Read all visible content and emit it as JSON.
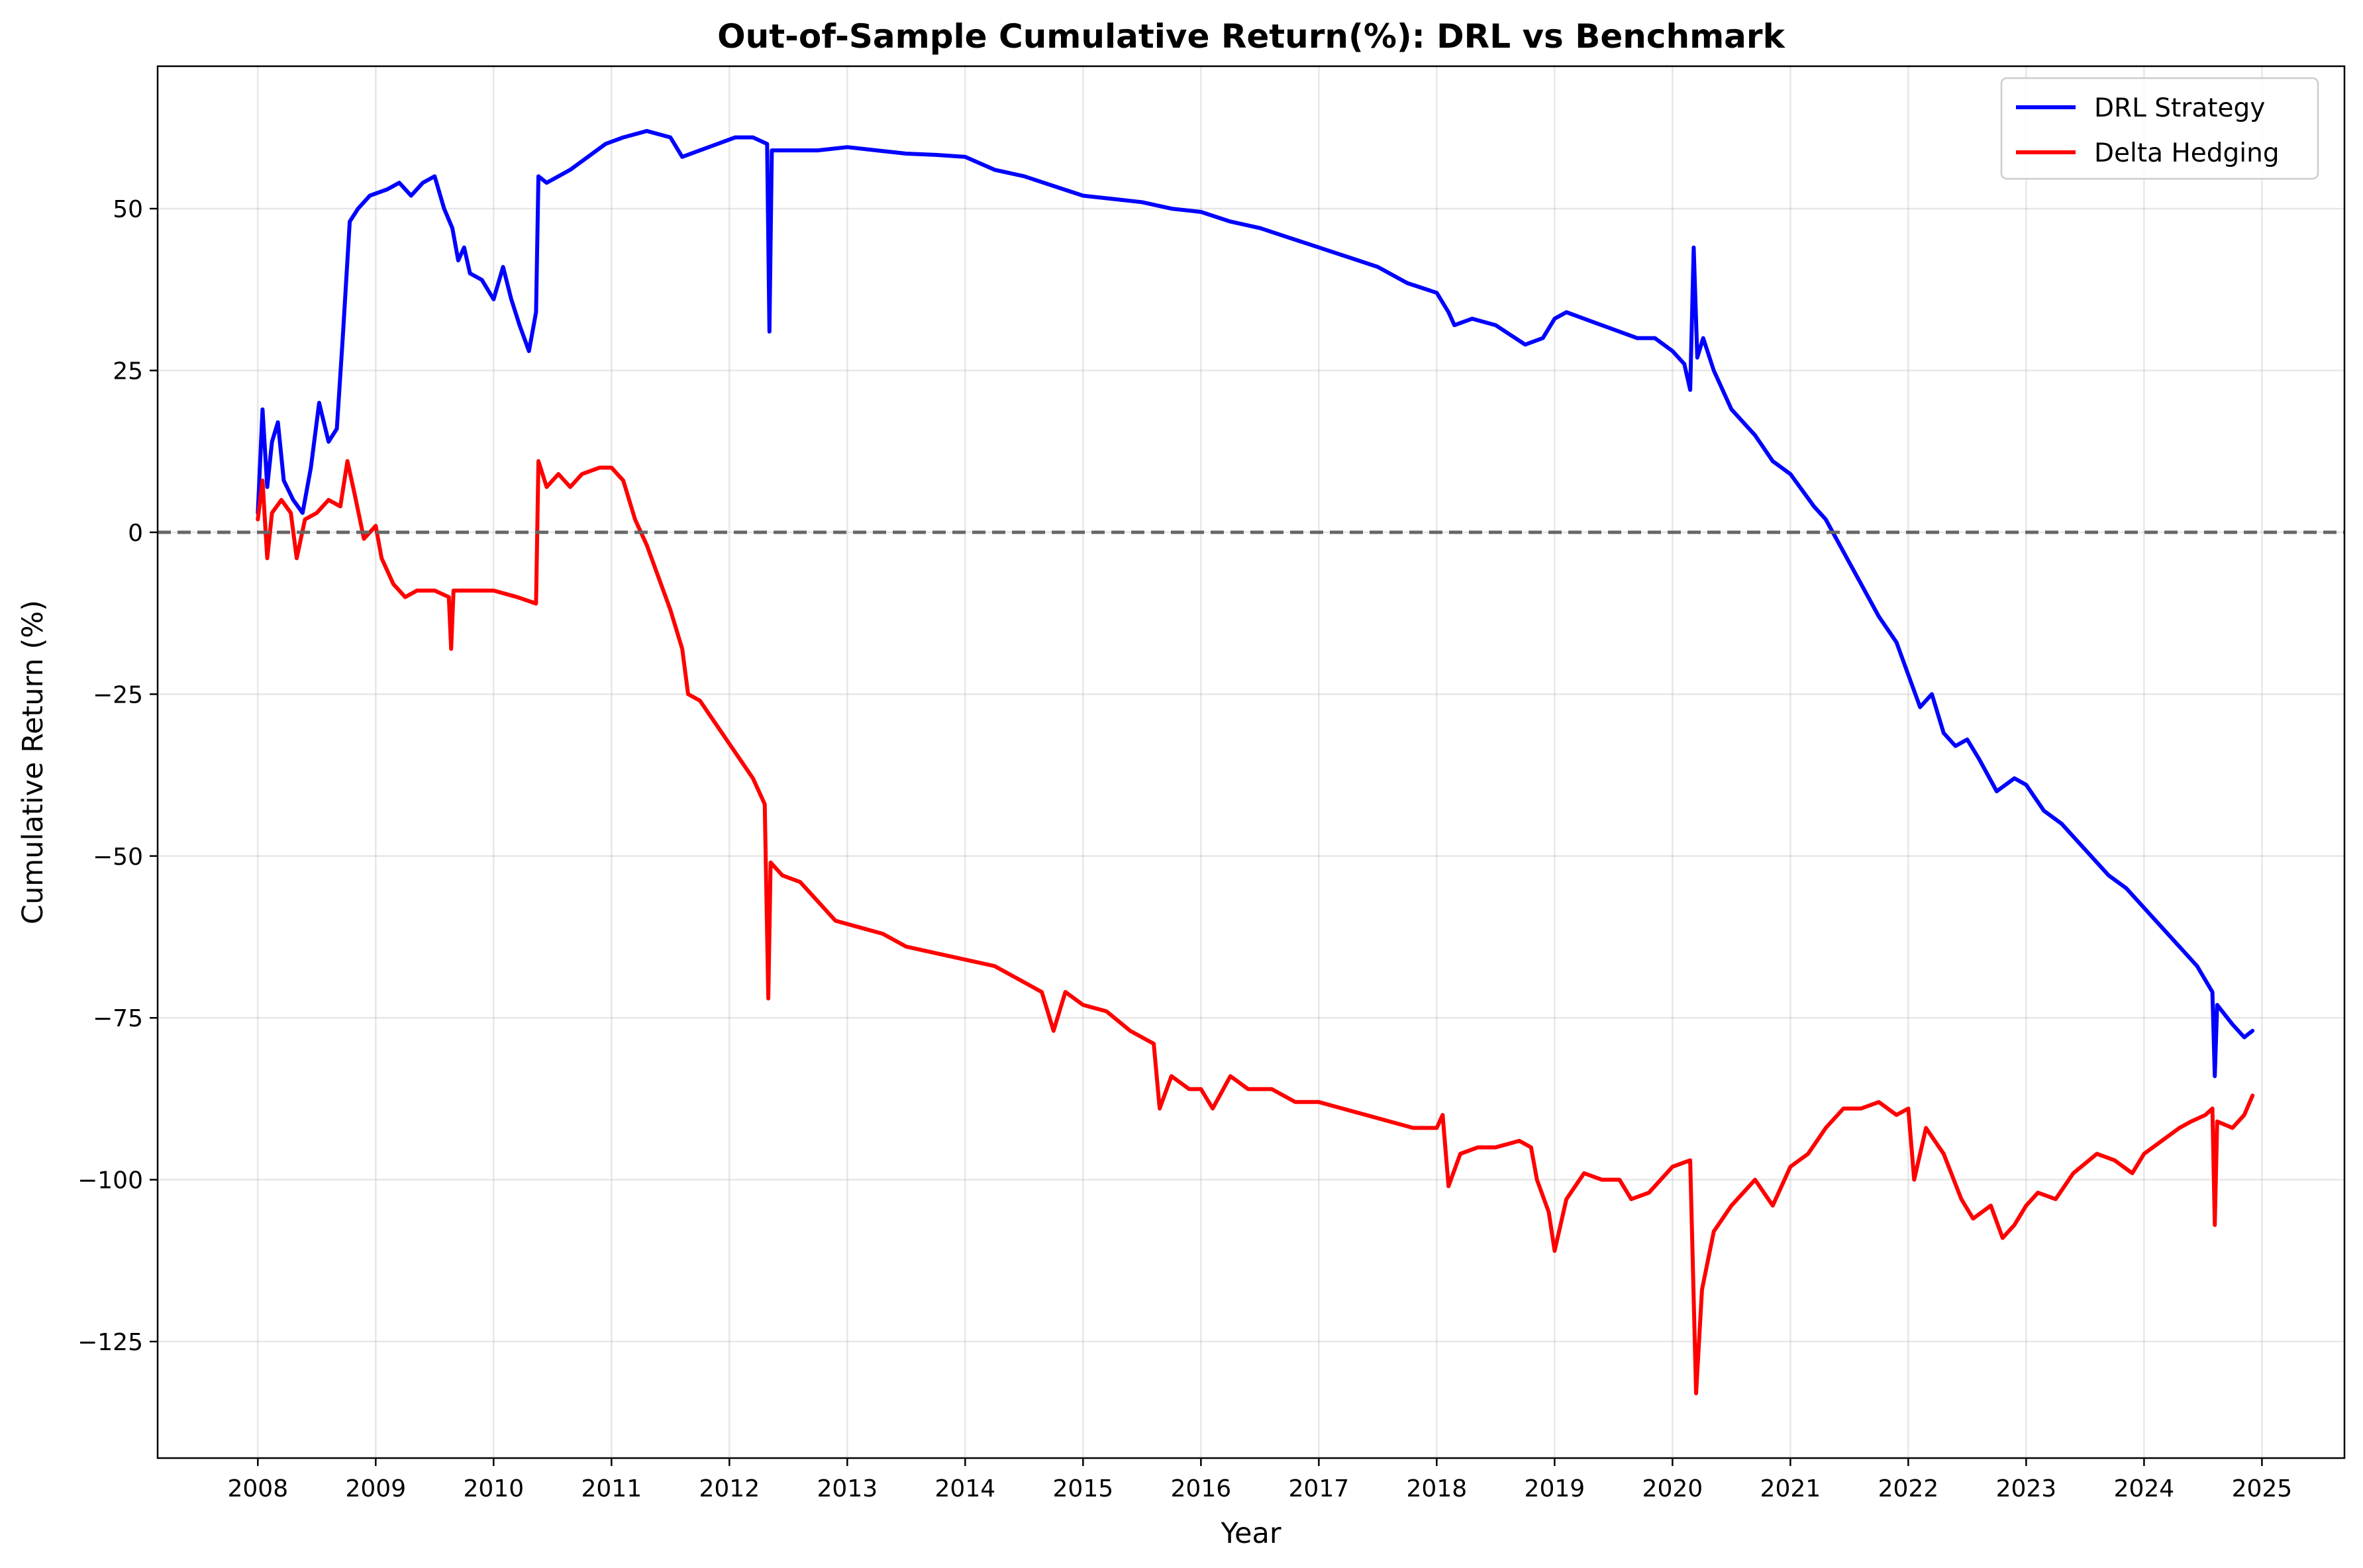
{
  "chart_data": {
    "type": "line",
    "title": "Out-of-Sample Cumulative Return(%): DRL vs Benchmark",
    "xlabel": "Year",
    "ylabel": "Cumulative Return (%)",
    "xlim": [
      2007.15,
      2025.7
    ],
    "ylim": [
      -143,
      72
    ],
    "x_ticks": [
      2008,
      2009,
      2010,
      2011,
      2012,
      2013,
      2014,
      2015,
      2016,
      2017,
      2018,
      2019,
      2020,
      2021,
      2022,
      2023,
      2024,
      2025
    ],
    "x_tick_labels": [
      "2008",
      "2009",
      "2010",
      "2011",
      "2012",
      "2013",
      "2014",
      "2015",
      "2016",
      "2017",
      "2018",
      "2019",
      "2020",
      "2021",
      "2022",
      "2023",
      "2024",
      "2025"
    ],
    "y_ticks": [
      50,
      25,
      0,
      -25,
      -50,
      -75,
      -100,
      -125
    ],
    "y_tick_labels": [
      "50",
      "25",
      "0",
      "−25",
      "−50",
      "−75",
      "−100",
      "−125"
    ],
    "grid": true,
    "reference_line": 0,
    "legend": {
      "placement": "top-right"
    },
    "series": [
      {
        "name": "DRL Strategy",
        "color": "#0000ff",
        "points": [
          [
            2008.0,
            3
          ],
          [
            2008.04,
            19
          ],
          [
            2008.08,
            7
          ],
          [
            2008.12,
            14
          ],
          [
            2008.17,
            17
          ],
          [
            2008.22,
            8
          ],
          [
            2008.3,
            5
          ],
          [
            2008.38,
            3
          ],
          [
            2008.45,
            10
          ],
          [
            2008.52,
            20
          ],
          [
            2008.6,
            14
          ],
          [
            2008.67,
            16
          ],
          [
            2008.72,
            30
          ],
          [
            2008.78,
            48
          ],
          [
            2008.85,
            50
          ],
          [
            2008.95,
            52
          ],
          [
            2009.1,
            53
          ],
          [
            2009.2,
            54
          ],
          [
            2009.3,
            52
          ],
          [
            2009.4,
            54
          ],
          [
            2009.5,
            55
          ],
          [
            2009.58,
            50
          ],
          [
            2009.65,
            47
          ],
          [
            2009.7,
            42
          ],
          [
            2009.75,
            44
          ],
          [
            2009.8,
            40
          ],
          [
            2009.9,
            39
          ],
          [
            2010.0,
            36
          ],
          [
            2010.08,
            41
          ],
          [
            2010.15,
            36
          ],
          [
            2010.22,
            32
          ],
          [
            2010.3,
            28
          ],
          [
            2010.36,
            34
          ],
          [
            2010.38,
            55
          ],
          [
            2010.45,
            54
          ],
          [
            2010.55,
            55
          ],
          [
            2010.65,
            56
          ],
          [
            2010.8,
            58
          ],
          [
            2010.95,
            60
          ],
          [
            2011.1,
            61
          ],
          [
            2011.3,
            62
          ],
          [
            2011.5,
            61
          ],
          [
            2011.6,
            58
          ],
          [
            2011.75,
            59
          ],
          [
            2011.9,
            60
          ],
          [
            2012.05,
            61
          ],
          [
            2012.2,
            61
          ],
          [
            2012.32,
            60
          ],
          [
            2012.34,
            31
          ],
          [
            2012.36,
            59
          ],
          [
            2012.5,
            59
          ],
          [
            2012.75,
            59
          ],
          [
            2013.0,
            59.5
          ],
          [
            2013.25,
            59
          ],
          [
            2013.5,
            58.5
          ],
          [
            2013.75,
            58.3
          ],
          [
            2014.0,
            58
          ],
          [
            2014.25,
            56
          ],
          [
            2014.5,
            55
          ],
          [
            2014.75,
            53.5
          ],
          [
            2015.0,
            52
          ],
          [
            2015.25,
            51.5
          ],
          [
            2015.5,
            51
          ],
          [
            2015.75,
            50
          ],
          [
            2016.0,
            49.5
          ],
          [
            2016.25,
            48
          ],
          [
            2016.5,
            47
          ],
          [
            2016.75,
            45.5
          ],
          [
            2017.0,
            44
          ],
          [
            2017.25,
            42.5
          ],
          [
            2017.5,
            41
          ],
          [
            2017.75,
            38.5
          ],
          [
            2018.0,
            37
          ],
          [
            2018.1,
            34
          ],
          [
            2018.15,
            32
          ],
          [
            2018.3,
            33
          ],
          [
            2018.5,
            32
          ],
          [
            2018.75,
            29
          ],
          [
            2018.9,
            30
          ],
          [
            2019.0,
            33
          ],
          [
            2019.1,
            34
          ],
          [
            2019.25,
            33
          ],
          [
            2019.4,
            32
          ],
          [
            2019.55,
            31
          ],
          [
            2019.7,
            30
          ],
          [
            2019.85,
            30
          ],
          [
            2020.0,
            28
          ],
          [
            2020.1,
            26
          ],
          [
            2020.15,
            22
          ],
          [
            2020.18,
            44
          ],
          [
            2020.21,
            27
          ],
          [
            2020.26,
            30
          ],
          [
            2020.35,
            25
          ],
          [
            2020.5,
            19
          ],
          [
            2020.7,
            15
          ],
          [
            2020.85,
            11
          ],
          [
            2021.0,
            9
          ],
          [
            2021.2,
            4
          ],
          [
            2021.3,
            2
          ],
          [
            2021.45,
            -3
          ],
          [
            2021.6,
            -8
          ],
          [
            2021.75,
            -13
          ],
          [
            2021.9,
            -17
          ],
          [
            2022.0,
            -22
          ],
          [
            2022.1,
            -27
          ],
          [
            2022.2,
            -25
          ],
          [
            2022.3,
            -31
          ],
          [
            2022.4,
            -33
          ],
          [
            2022.5,
            -32
          ],
          [
            2022.6,
            -35
          ],
          [
            2022.75,
            -40
          ],
          [
            2022.9,
            -38
          ],
          [
            2023.0,
            -39
          ],
          [
            2023.15,
            -43
          ],
          [
            2023.3,
            -45
          ],
          [
            2023.5,
            -49
          ],
          [
            2023.7,
            -53
          ],
          [
            2023.85,
            -55
          ],
          [
            2024.0,
            -58
          ],
          [
            2024.15,
            -61
          ],
          [
            2024.3,
            -64
          ],
          [
            2024.45,
            -67
          ],
          [
            2024.58,
            -71
          ],
          [
            2024.6,
            -84
          ],
          [
            2024.62,
            -73
          ],
          [
            2024.75,
            -76
          ],
          [
            2024.85,
            -78
          ],
          [
            2024.92,
            -77
          ]
        ]
      },
      {
        "name": "Delta Hedging",
        "color": "#ff0000",
        "points": [
          [
            2008.0,
            2
          ],
          [
            2008.04,
            8
          ],
          [
            2008.08,
            -4
          ],
          [
            2008.12,
            3
          ],
          [
            2008.2,
            5
          ],
          [
            2008.28,
            3
          ],
          [
            2008.33,
            -4
          ],
          [
            2008.4,
            2
          ],
          [
            2008.5,
            3
          ],
          [
            2008.6,
            5
          ],
          [
            2008.7,
            4
          ],
          [
            2008.76,
            11
          ],
          [
            2008.82,
            6
          ],
          [
            2008.9,
            -1
          ],
          [
            2009.0,
            1
          ],
          [
            2009.05,
            -4
          ],
          [
            2009.15,
            -8
          ],
          [
            2009.25,
            -10
          ],
          [
            2009.35,
            -9
          ],
          [
            2009.5,
            -9
          ],
          [
            2009.62,
            -10
          ],
          [
            2009.64,
            -18
          ],
          [
            2009.66,
            -9
          ],
          [
            2009.8,
            -9
          ],
          [
            2010.0,
            -9
          ],
          [
            2010.2,
            -10
          ],
          [
            2010.36,
            -11
          ],
          [
            2010.38,
            11
          ],
          [
            2010.45,
            7
          ],
          [
            2010.55,
            9
          ],
          [
            2010.65,
            7
          ],
          [
            2010.75,
            9
          ],
          [
            2010.9,
            10
          ],
          [
            2011.0,
            10
          ],
          [
            2011.1,
            8
          ],
          [
            2011.2,
            2
          ],
          [
            2011.3,
            -2
          ],
          [
            2011.4,
            -7
          ],
          [
            2011.5,
            -12
          ],
          [
            2011.6,
            -18
          ],
          [
            2011.65,
            -25
          ],
          [
            2011.75,
            -26
          ],
          [
            2011.9,
            -30
          ],
          [
            2012.05,
            -34
          ],
          [
            2012.2,
            -38
          ],
          [
            2012.3,
            -42
          ],
          [
            2012.33,
            -72
          ],
          [
            2012.35,
            -51
          ],
          [
            2012.45,
            -53
          ],
          [
            2012.6,
            -54
          ],
          [
            2012.75,
            -57
          ],
          [
            2012.9,
            -60
          ],
          [
            2013.1,
            -61
          ],
          [
            2013.3,
            -62
          ],
          [
            2013.5,
            -64
          ],
          [
            2013.75,
            -65
          ],
          [
            2014.0,
            -66
          ],
          [
            2014.25,
            -67
          ],
          [
            2014.45,
            -69
          ],
          [
            2014.65,
            -71
          ],
          [
            2014.75,
            -77
          ],
          [
            2014.85,
            -71
          ],
          [
            2015.0,
            -73
          ],
          [
            2015.2,
            -74
          ],
          [
            2015.4,
            -77
          ],
          [
            2015.6,
            -79
          ],
          [
            2015.65,
            -89
          ],
          [
            2015.75,
            -84
          ],
          [
            2015.9,
            -86
          ],
          [
            2016.0,
            -86
          ],
          [
            2016.1,
            -89
          ],
          [
            2016.25,
            -84
          ],
          [
            2016.4,
            -86
          ],
          [
            2016.6,
            -86
          ],
          [
            2016.8,
            -88
          ],
          [
            2017.0,
            -88
          ],
          [
            2017.2,
            -89
          ],
          [
            2017.4,
            -90
          ],
          [
            2017.6,
            -91
          ],
          [
            2017.8,
            -92
          ],
          [
            2018.0,
            -92
          ],
          [
            2018.05,
            -90
          ],
          [
            2018.1,
            -101
          ],
          [
            2018.2,
            -96
          ],
          [
            2018.35,
            -95
          ],
          [
            2018.5,
            -95
          ],
          [
            2018.7,
            -94
          ],
          [
            2018.8,
            -95
          ],
          [
            2018.85,
            -100
          ],
          [
            2018.95,
            -105
          ],
          [
            2019.0,
            -111
          ],
          [
            2019.1,
            -103
          ],
          [
            2019.25,
            -99
          ],
          [
            2019.4,
            -100
          ],
          [
            2019.55,
            -100
          ],
          [
            2019.65,
            -103
          ],
          [
            2019.8,
            -102
          ],
          [
            2020.0,
            -98
          ],
          [
            2020.15,
            -97
          ],
          [
            2020.2,
            -133
          ],
          [
            2020.25,
            -117
          ],
          [
            2020.35,
            -108
          ],
          [
            2020.5,
            -104
          ],
          [
            2020.6,
            -102
          ],
          [
            2020.7,
            -100
          ],
          [
            2020.85,
            -104
          ],
          [
            2021.0,
            -98
          ],
          [
            2021.15,
            -96
          ],
          [
            2021.3,
            -92
          ],
          [
            2021.45,
            -89
          ],
          [
            2021.6,
            -89
          ],
          [
            2021.75,
            -88
          ],
          [
            2021.9,
            -90
          ],
          [
            2022.0,
            -89
          ],
          [
            2022.05,
            -100
          ],
          [
            2022.15,
            -92
          ],
          [
            2022.3,
            -96
          ],
          [
            2022.45,
            -103
          ],
          [
            2022.55,
            -106
          ],
          [
            2022.7,
            -104
          ],
          [
            2022.8,
            -109
          ],
          [
            2022.9,
            -107
          ],
          [
            2023.0,
            -104
          ],
          [
            2023.1,
            -102
          ],
          [
            2023.25,
            -103
          ],
          [
            2023.4,
            -99
          ],
          [
            2023.6,
            -96
          ],
          [
            2023.75,
            -97
          ],
          [
            2023.9,
            -99
          ],
          [
            2024.0,
            -96
          ],
          [
            2024.15,
            -94
          ],
          [
            2024.3,
            -92
          ],
          [
            2024.4,
            -91
          ],
          [
            2024.52,
            -90
          ],
          [
            2024.58,
            -89
          ],
          [
            2024.6,
            -107
          ],
          [
            2024.62,
            -91
          ],
          [
            2024.75,
            -92
          ],
          [
            2024.85,
            -90
          ],
          [
            2024.92,
            -87
          ]
        ]
      }
    ]
  }
}
